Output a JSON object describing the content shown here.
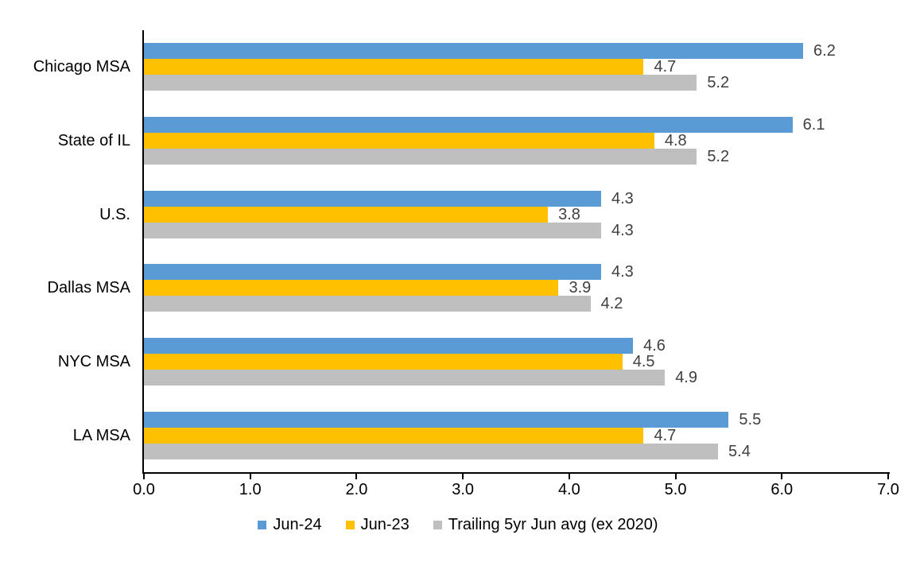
{
  "chart_data": {
    "type": "bar",
    "orientation": "horizontal",
    "title": "",
    "xlabel": "",
    "ylabel": "",
    "categories": [
      "Chicago MSA",
      "State of IL",
      "U.S.",
      "Dallas MSA",
      "NYC MSA",
      "LA MSA"
    ],
    "series": [
      {
        "name": "Jun-24",
        "color": "#5B9BD5",
        "values": [
          6.2,
          6.1,
          4.3,
          4.3,
          4.6,
          5.5
        ],
        "labels": [
          "6.2",
          "6.1",
          "4.3",
          "4.3",
          "4.6",
          "5.5"
        ]
      },
      {
        "name": "Jun-23",
        "color": "#FFC000",
        "values": [
          4.7,
          4.8,
          3.8,
          3.9,
          4.5,
          4.7
        ],
        "labels": [
          "4.7",
          "4.8",
          "3.8",
          "3.9",
          "4.5",
          "4.7"
        ]
      },
      {
        "name": "Trailing 5yr Jun avg (ex 2020)",
        "color": "#BFBFBF",
        "values": [
          5.2,
          5.2,
          4.3,
          4.2,
          4.9,
          5.4
        ],
        "labels": [
          "5.2",
          "5.2",
          "4.3",
          "4.2",
          "4.9",
          "5.4"
        ]
      }
    ],
    "xlim": [
      0,
      7
    ],
    "x_ticks": [
      "0.0",
      "1.0",
      "2.0",
      "3.0",
      "4.0",
      "5.0",
      "6.0",
      "7.0"
    ],
    "grid": false,
    "legend_position": "bottom",
    "colors": {
      "axis": "#000000",
      "category_label": "#000000",
      "tick_label": "#000000",
      "data_label": "#404040",
      "background": "#FFFFFF"
    }
  }
}
